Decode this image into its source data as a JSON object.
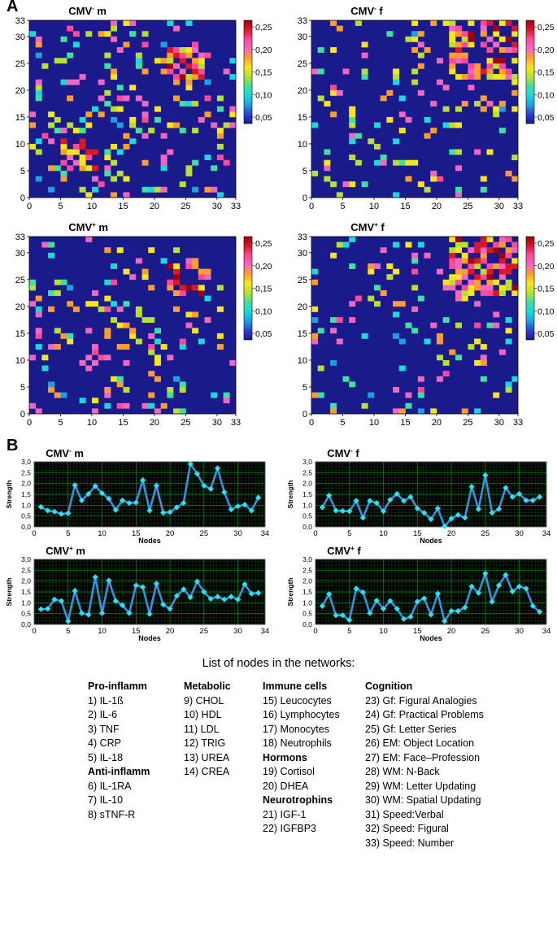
{
  "panels": {
    "a": "A",
    "b": "B"
  },
  "colorbar": {
    "ticks": [
      "0,25",
      "0,20",
      "0,15",
      "0,10",
      "0,05"
    ],
    "stops": [
      "#1a1a8c",
      "#2f3fd0",
      "#1ea0e0",
      "#19d9d9",
      "#3fe0a0",
      "#b8e032",
      "#f5e61e",
      "#ff9e30",
      "#ee68c0",
      "#ff4a9a",
      "#d8182a",
      "#9e0010"
    ]
  },
  "chart_data": [
    {
      "type": "heatmap",
      "title": "CMV⁻ m",
      "title_main": "CMV",
      "title_sup": "-",
      "title_tail": " m",
      "n": 33,
      "xticks": [
        0,
        5,
        10,
        15,
        20,
        25,
        30,
        33
      ],
      "yticks": [
        0,
        5,
        10,
        15,
        20,
        25,
        30,
        33
      ],
      "xlim": [
        0,
        33
      ],
      "ylim": [
        0,
        33
      ],
      "value_range": [
        0.05,
        0.25
      ],
      "seed": 11,
      "density": 0.16,
      "hot_blocks": [
        [
          22,
          29,
          20,
          28
        ],
        [
          5,
          10,
          4,
          11
        ]
      ]
    },
    {
      "type": "heatmap",
      "title": "CMV⁻ f",
      "title_main": "CMV",
      "title_sup": "-",
      "title_tail": " f",
      "n": 33,
      "xticks": [
        0,
        5,
        10,
        15,
        20,
        25,
        30,
        33
      ],
      "yticks": [
        0,
        5,
        10,
        15,
        20,
        25,
        30,
        33
      ],
      "xlim": [
        0,
        33
      ],
      "ylim": [
        0,
        33
      ],
      "value_range": [
        0.05,
        0.25
      ],
      "seed": 23,
      "density": 0.11,
      "hot_blocks": [
        [
          22,
          33,
          22,
          33
        ]
      ]
    },
    {
      "type": "heatmap",
      "title": "CMV⁺ m",
      "title_main": "CMV",
      "title_sup": "+",
      "title_tail": " m",
      "n": 33,
      "xticks": [
        0,
        5,
        10,
        15,
        20,
        25,
        30,
        33
      ],
      "yticks": [
        0,
        5,
        10,
        15,
        20,
        25,
        30,
        33
      ],
      "xlim": [
        0,
        33
      ],
      "ylim": [
        0,
        33
      ],
      "value_range": [
        0.05,
        0.25
      ],
      "seed": 37,
      "density": 0.15,
      "hot_blocks": [
        [
          22,
          29,
          20,
          28
        ]
      ]
    },
    {
      "type": "heatmap",
      "title": "CMV⁺ f",
      "title_main": "CMV",
      "title_sup": "+",
      "title_tail": " f",
      "n": 33,
      "xticks": [
        0,
        5,
        10,
        15,
        20,
        25,
        30,
        33
      ],
      "yticks": [
        0,
        5,
        10,
        15,
        20,
        25,
        30,
        33
      ],
      "xlim": [
        0,
        33
      ],
      "ylim": [
        0,
        33
      ],
      "value_range": [
        0.05,
        0.25
      ],
      "seed": 53,
      "density": 0.1,
      "hot_blocks": [
        [
          22,
          33,
          22,
          33
        ]
      ]
    },
    {
      "type": "line",
      "title": "CMV⁻ m",
      "title_main": "CMV",
      "title_sup": "-",
      "title_tail": " m",
      "xlabel": "Nodes",
      "ylabel": "Strength",
      "xlim": [
        0,
        34
      ],
      "ylim": [
        0,
        3
      ],
      "xticks": [
        0,
        5,
        10,
        15,
        20,
        25,
        30,
        34
      ],
      "yticks": [
        "0,0",
        "0,5",
        "1,0",
        "1,5",
        "2,0",
        "2,5",
        "3,0"
      ],
      "x": [
        1,
        2,
        3,
        4,
        5,
        6,
        7,
        8,
        9,
        10,
        11,
        12,
        13,
        14,
        15,
        16,
        17,
        18,
        19,
        20,
        21,
        22,
        23,
        24,
        25,
        26,
        27,
        28,
        29,
        30,
        31,
        32,
        33
      ],
      "values": [
        0.92,
        0.75,
        0.7,
        0.6,
        0.63,
        1.92,
        1.22,
        1.52,
        1.88,
        1.55,
        1.3,
        0.78,
        1.22,
        1.1,
        1.12,
        2.15,
        0.75,
        1.9,
        0.65,
        0.68,
        0.9,
        1.1,
        2.9,
        2.45,
        1.9,
        1.75,
        2.7,
        1.6,
        0.8,
        0.95,
        1.02,
        0.75,
        1.35
      ]
    },
    {
      "type": "line",
      "title": "CMV⁻ f",
      "title_main": "CMV",
      "title_sup": "-",
      "title_tail": " f",
      "xlabel": "Nodes",
      "ylabel": "Strength",
      "xlim": [
        0,
        34
      ],
      "ylim": [
        0,
        3
      ],
      "xticks": [
        0,
        5,
        10,
        15,
        20,
        25,
        30,
        34
      ],
      "yticks": [
        "0,0",
        "0,5",
        "1,0",
        "1,5",
        "2,0",
        "2,5",
        "3,0"
      ],
      "x": [
        1,
        2,
        3,
        4,
        5,
        6,
        7,
        8,
        9,
        10,
        11,
        12,
        13,
        14,
        15,
        16,
        17,
        18,
        19,
        20,
        21,
        22,
        23,
        24,
        25,
        26,
        27,
        28,
        29,
        30,
        31,
        32,
        33
      ],
      "values": [
        0.9,
        1.45,
        0.75,
        0.73,
        0.72,
        1.2,
        0.42,
        1.2,
        1.1,
        0.72,
        1.25,
        1.52,
        1.2,
        1.38,
        0.85,
        0.65,
        0.35,
        0.85,
        0.02,
        0.38,
        0.55,
        0.42,
        1.85,
        0.82,
        2.38,
        0.65,
        0.82,
        1.8,
        1.38,
        1.52,
        1.22,
        1.22,
        1.38
      ]
    },
    {
      "type": "line",
      "title": "CMV⁺ m",
      "title_main": "CMV",
      "title_sup": "+",
      "title_tail": " m",
      "xlabel": "Nodes",
      "ylabel": "Strength",
      "xlim": [
        0,
        34
      ],
      "ylim": [
        0,
        3
      ],
      "xticks": [
        0,
        5,
        10,
        15,
        20,
        25,
        30,
        34
      ],
      "yticks": [
        "0,0",
        "0,5",
        "1,0",
        "1,5",
        "2,0",
        "2,5",
        "3,0"
      ],
      "x": [
        1,
        2,
        3,
        4,
        5,
        6,
        7,
        8,
        9,
        10,
        11,
        12,
        13,
        14,
        15,
        16,
        17,
        18,
        19,
        20,
        21,
        22,
        23,
        24,
        25,
        26,
        27,
        28,
        29,
        30,
        31,
        32,
        33
      ],
      "values": [
        0.7,
        0.72,
        1.15,
        1.08,
        0.15,
        1.55,
        0.52,
        0.45,
        2.18,
        0.52,
        2.02,
        1.08,
        0.88,
        0.52,
        1.8,
        1.72,
        0.48,
        1.88,
        0.92,
        0.72,
        1.32,
        1.62,
        1.25,
        1.98,
        1.5,
        1.18,
        1.28,
        1.15,
        1.28,
        1.15,
        1.85,
        1.42,
        1.45
      ]
    },
    {
      "type": "line",
      "title": "CMV⁺ f",
      "title_main": "CMV",
      "title_sup": "+",
      "title_tail": " f",
      "xlabel": "Nodes",
      "ylabel": "Strength",
      "xlim": [
        0,
        34
      ],
      "ylim": [
        0,
        3
      ],
      "xticks": [
        0,
        5,
        10,
        15,
        20,
        25,
        30,
        34
      ],
      "yticks": [
        "0,0",
        "0,5",
        "1,0",
        "1,5",
        "2,0",
        "2,5",
        "3,0"
      ],
      "x": [
        1,
        2,
        3,
        4,
        5,
        6,
        7,
        8,
        9,
        10,
        11,
        12,
        13,
        14,
        15,
        16,
        17,
        18,
        19,
        20,
        21,
        22,
        23,
        24,
        25,
        26,
        27,
        28,
        29,
        30,
        31,
        32,
        33
      ],
      "values": [
        0.85,
        1.4,
        0.42,
        0.42,
        0.2,
        1.65,
        1.48,
        0.52,
        1.1,
        0.72,
        1.08,
        0.72,
        0.25,
        0.35,
        1.05,
        1.2,
        0.45,
        1.42,
        0.15,
        0.62,
        0.62,
        0.78,
        1.75,
        1.45,
        2.35,
        1.05,
        1.8,
        2.28,
        1.52,
        1.75,
        1.65,
        0.85,
        0.58
      ]
    }
  ],
  "legend": {
    "title": "List of nodes in the networks:",
    "columns": [
      {
        "groups": [
          {
            "header": "Pro-inflamm",
            "items": [
              "1) IL-1ß",
              "2) IL-6",
              "3) TNF",
              "4) CRP",
              "5) IL-18"
            ]
          },
          {
            "header": "Anti-inflamm",
            "items": [
              "6) IL-1RA",
              "7) IL-10",
              "8) sTNF-R"
            ]
          }
        ]
      },
      {
        "groups": [
          {
            "header": "Metabolic",
            "items": [
              "9) CHOL",
              "10) HDL",
              "11) LDL",
              "12) TRIG",
              "13) UREA",
              "14) CREA"
            ]
          }
        ]
      },
      {
        "groups": [
          {
            "header": "Immune cells",
            "items": [
              "15) Leucocytes",
              "16) Lymphocytes",
              "17) Monocytes",
              "18) Neutrophils"
            ]
          },
          {
            "header": "Hormons",
            "items": [
              "19) Cortisol",
              "20) DHEA"
            ]
          },
          {
            "header": "Neurotrophins",
            "items": [
              "21) IGF-1",
              "22) IGFBP3"
            ]
          }
        ]
      },
      {
        "groups": [
          {
            "header": "Cognition",
            "items": [
              "23) Gf: Figural Analogies",
              "24) Gf: Practical Problems",
              "25) Gf: Letter Series",
              "26) EM: Object Location",
              "27) EM: Face–Profession",
              "28) WM: N-Back",
              "29) WM: Letter Updating",
              "30) WM: Spatial Updating",
              "31) Speed:Verbal",
              "32) Speed: Figural",
              "33) Speed: Number"
            ]
          }
        ]
      }
    ]
  }
}
